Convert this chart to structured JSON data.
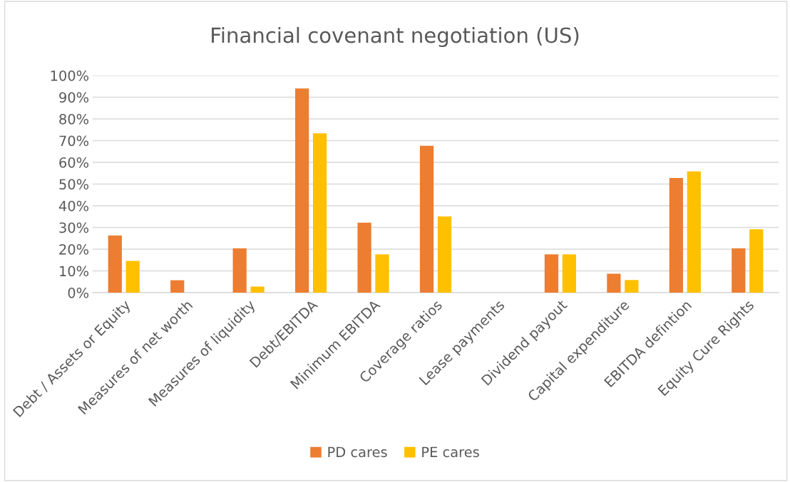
{
  "chart_data": {
    "type": "bar",
    "title": "Financial covenant negotiation (US)",
    "categories": [
      "Debt / Assets or Equity",
      "Measures of net worth",
      "Measures of liquidity",
      "Debt/EBITDA",
      "Minimum EBITDA",
      "Coverage ratios",
      "Lease payments",
      "Dividend payout",
      "Capital expenditure",
      "EBITDA defintion",
      "Equity Cure Rights"
    ],
    "series": [
      {
        "name": "PD cares",
        "color": "#ed7d31",
        "values": [
          26.3,
          5.7,
          20.4,
          94,
          32.2,
          67.6,
          0,
          17.6,
          8.7,
          52.8,
          20.4
        ]
      },
      {
        "name": "PE cares",
        "color": "#ffc000",
        "values": [
          14.6,
          0,
          2.8,
          73.4,
          17.6,
          35.1,
          0,
          17.6,
          5.8,
          55.8,
          29.2
        ]
      }
    ],
    "ylim": [
      0,
      100
    ],
    "yticks": [
      {
        "value": 0,
        "label": "0%"
      },
      {
        "value": 10,
        "label": "10%"
      },
      {
        "value": 20,
        "label": "20%"
      },
      {
        "value": 30,
        "label": "30%"
      },
      {
        "value": 40,
        "label": "40%"
      },
      {
        "value": 50,
        "label": "50%"
      },
      {
        "value": 60,
        "label": "60%"
      },
      {
        "value": 70,
        "label": "70%"
      },
      {
        "value": 80,
        "label": "80%"
      },
      {
        "value": 90,
        "label": "90%"
      },
      {
        "value": 100,
        "label": "100%"
      }
    ],
    "grid": "y",
    "legend": "bottom"
  }
}
